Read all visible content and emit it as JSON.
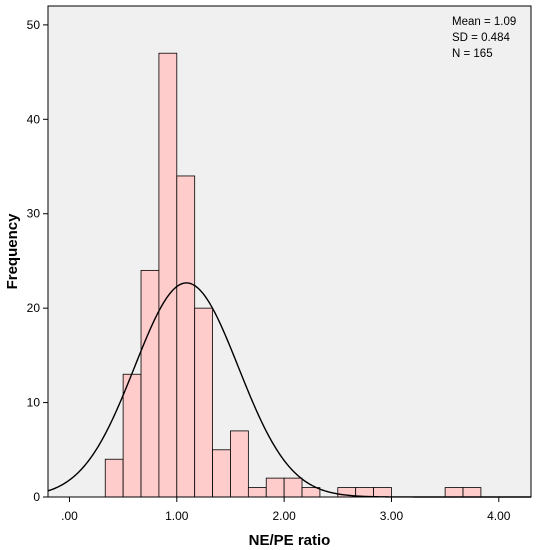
{
  "chart_data": {
    "type": "bar",
    "subtype": "histogram",
    "xlabel": "NE/PE ratio",
    "ylabel": "Frequency",
    "xlim": [
      -0.2,
      4.3
    ],
    "ylim": [
      0,
      52
    ],
    "x_ticks": [
      0,
      1,
      2,
      3,
      4
    ],
    "x_tick_labels": [
      ".00",
      "1.00",
      "2.00",
      "3.00",
      "4.00"
    ],
    "y_ticks": [
      0,
      10,
      20,
      30,
      40,
      50
    ],
    "y_tick_labels": [
      "0",
      "10",
      "20",
      "30",
      "40",
      "50"
    ],
    "bin_width": 0.1667,
    "bins": [
      {
        "start": 0.3333,
        "end": 0.5,
        "value": 4
      },
      {
        "start": 0.5,
        "end": 0.6667,
        "value": 13
      },
      {
        "start": 0.6667,
        "end": 0.8333,
        "value": 24
      },
      {
        "start": 0.8333,
        "end": 1.0,
        "value": 47
      },
      {
        "start": 1.0,
        "end": 1.1667,
        "value": 34
      },
      {
        "start": 1.1667,
        "end": 1.3333,
        "value": 20
      },
      {
        "start": 1.3333,
        "end": 1.5,
        "value": 5
      },
      {
        "start": 1.5,
        "end": 1.6667,
        "value": 7
      },
      {
        "start": 1.6667,
        "end": 1.8333,
        "value": 1
      },
      {
        "start": 1.8333,
        "end": 2.0,
        "value": 2
      },
      {
        "start": 2.0,
        "end": 2.1667,
        "value": 2
      },
      {
        "start": 2.1667,
        "end": 2.3333,
        "value": 1
      },
      {
        "start": 2.5,
        "end": 2.6667,
        "value": 1
      },
      {
        "start": 2.6667,
        "end": 2.8333,
        "value": 1
      },
      {
        "start": 2.8333,
        "end": 3.0,
        "value": 1
      },
      {
        "start": 3.5,
        "end": 3.6667,
        "value": 1
      },
      {
        "start": 3.6667,
        "end": 3.8333,
        "value": 1
      }
    ],
    "normal_curve": {
      "mean": 1.09,
      "sd": 0.484,
      "n": 165
    },
    "stats": [
      "Mean = 1.09",
      "SD = 0.484",
      "N = 165"
    ],
    "grid": false,
    "colors": {
      "bar_fill": "#ffcccc",
      "bar_stroke": "#000000",
      "plot_background": "#f0f0f0",
      "curve": "#000000"
    }
  }
}
